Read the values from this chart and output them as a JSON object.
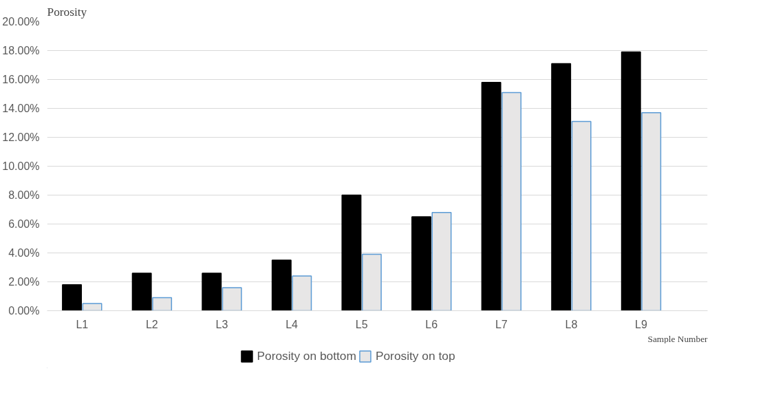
{
  "chart_data": {
    "type": "bar",
    "ylabel": "Porosity",
    "xlabel": "Sample Number",
    "categories": [
      "L1",
      "L2",
      "L3",
      "L4",
      "L5",
      "L6",
      "L7",
      "L8",
      "L9"
    ],
    "series": [
      {
        "name": "Porosity on bottom",
        "color": "#000000",
        "values": [
          1.8,
          2.6,
          2.6,
          3.5,
          8.0,
          6.5,
          15.8,
          17.1,
          17.9
        ]
      },
      {
        "name": "Porosity on top",
        "color": "#e7e6e6",
        "values": [
          0.5,
          0.9,
          1.6,
          2.4,
          3.9,
          6.8,
          15.1,
          13.1,
          13.7
        ]
      }
    ],
    "ylim": [
      0,
      20
    ],
    "yticks": [
      {
        "value": 0,
        "label": "0.00%"
      },
      {
        "value": 2,
        "label": "2.00%"
      },
      {
        "value": 4,
        "label": "4.00%"
      },
      {
        "value": 6,
        "label": "6.00%"
      },
      {
        "value": 8,
        "label": "8.00%"
      },
      {
        "value": 10,
        "label": "10.00%"
      },
      {
        "value": 12,
        "label": "12.00%"
      },
      {
        "value": 14,
        "label": "14.00%"
      },
      {
        "value": 16,
        "label": "16.00%"
      },
      {
        "value": 18,
        "label": "18.00%"
      },
      {
        "value": 20,
        "label": "20.00%"
      }
    ],
    "grid": "y",
    "legend": "bottom"
  }
}
